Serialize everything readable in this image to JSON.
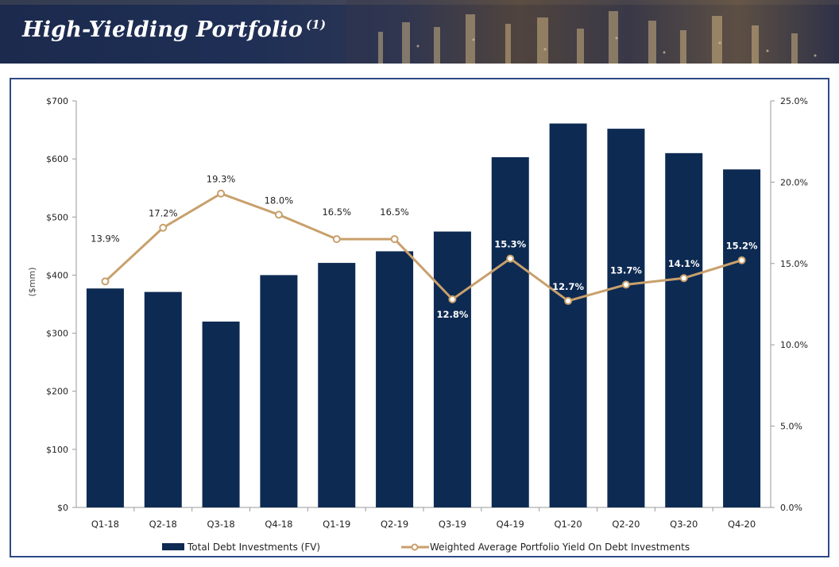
{
  "header": {
    "title": "High-Yielding Portfolio",
    "footnote": "(1)"
  },
  "colors": {
    "bar": "#0d2a52",
    "line": "#c8a06c",
    "marker_fill": "#ffffff",
    "frame": "#2e4a86",
    "banner": "#1b2a4d"
  },
  "chart_data": {
    "type": "bar",
    "categories": [
      "Q1-18",
      "Q2-18",
      "Q3-18",
      "Q4-18",
      "Q1-19",
      "Q2-19",
      "Q3-19",
      "Q4-19",
      "Q1-20",
      "Q2-20",
      "Q3-20",
      "Q4-20"
    ],
    "series": [
      {
        "name": "Total Debt Investments (FV)",
        "type": "bar",
        "axis": "left",
        "values": [
          377,
          371,
          320,
          400,
          421,
          441,
          475,
          603,
          661,
          652,
          610,
          582
        ]
      },
      {
        "name": "Weighted Average Portfolio Yield On Debt Investments",
        "type": "line",
        "axis": "right",
        "values": [
          13.9,
          17.2,
          19.3,
          18.0,
          16.5,
          16.5,
          12.8,
          15.3,
          12.7,
          13.7,
          14.1,
          15.2
        ],
        "labels": [
          "13.9%",
          "17.2%",
          "19.3%",
          "18.0%",
          "16.5%",
          "16.5%",
          "12.8%",
          "15.3%",
          "12.7%",
          "13.7%",
          "14.1%",
          "15.2%"
        ],
        "label_inside_bar": [
          false,
          false,
          false,
          false,
          false,
          false,
          true,
          true,
          true,
          true,
          true,
          true
        ]
      }
    ],
    "ylabel": "($mm)",
    "xlabel": "",
    "ylim": [
      0,
      700
    ],
    "y_ticks": [
      0,
      100,
      200,
      300,
      400,
      500,
      600,
      700
    ],
    "y_tick_labels": [
      "$0",
      "$100",
      "$200",
      "$300",
      "$400",
      "$500",
      "$600",
      "$700"
    ],
    "y2lim": [
      0,
      25
    ],
    "y2_ticks": [
      0,
      5,
      10,
      15,
      20,
      25
    ],
    "y2_tick_labels": [
      "0.0%",
      "5.0%",
      "10.0%",
      "15.0%",
      "20.0%",
      "25.0%"
    ],
    "grid": false,
    "legend_position": "bottom"
  }
}
